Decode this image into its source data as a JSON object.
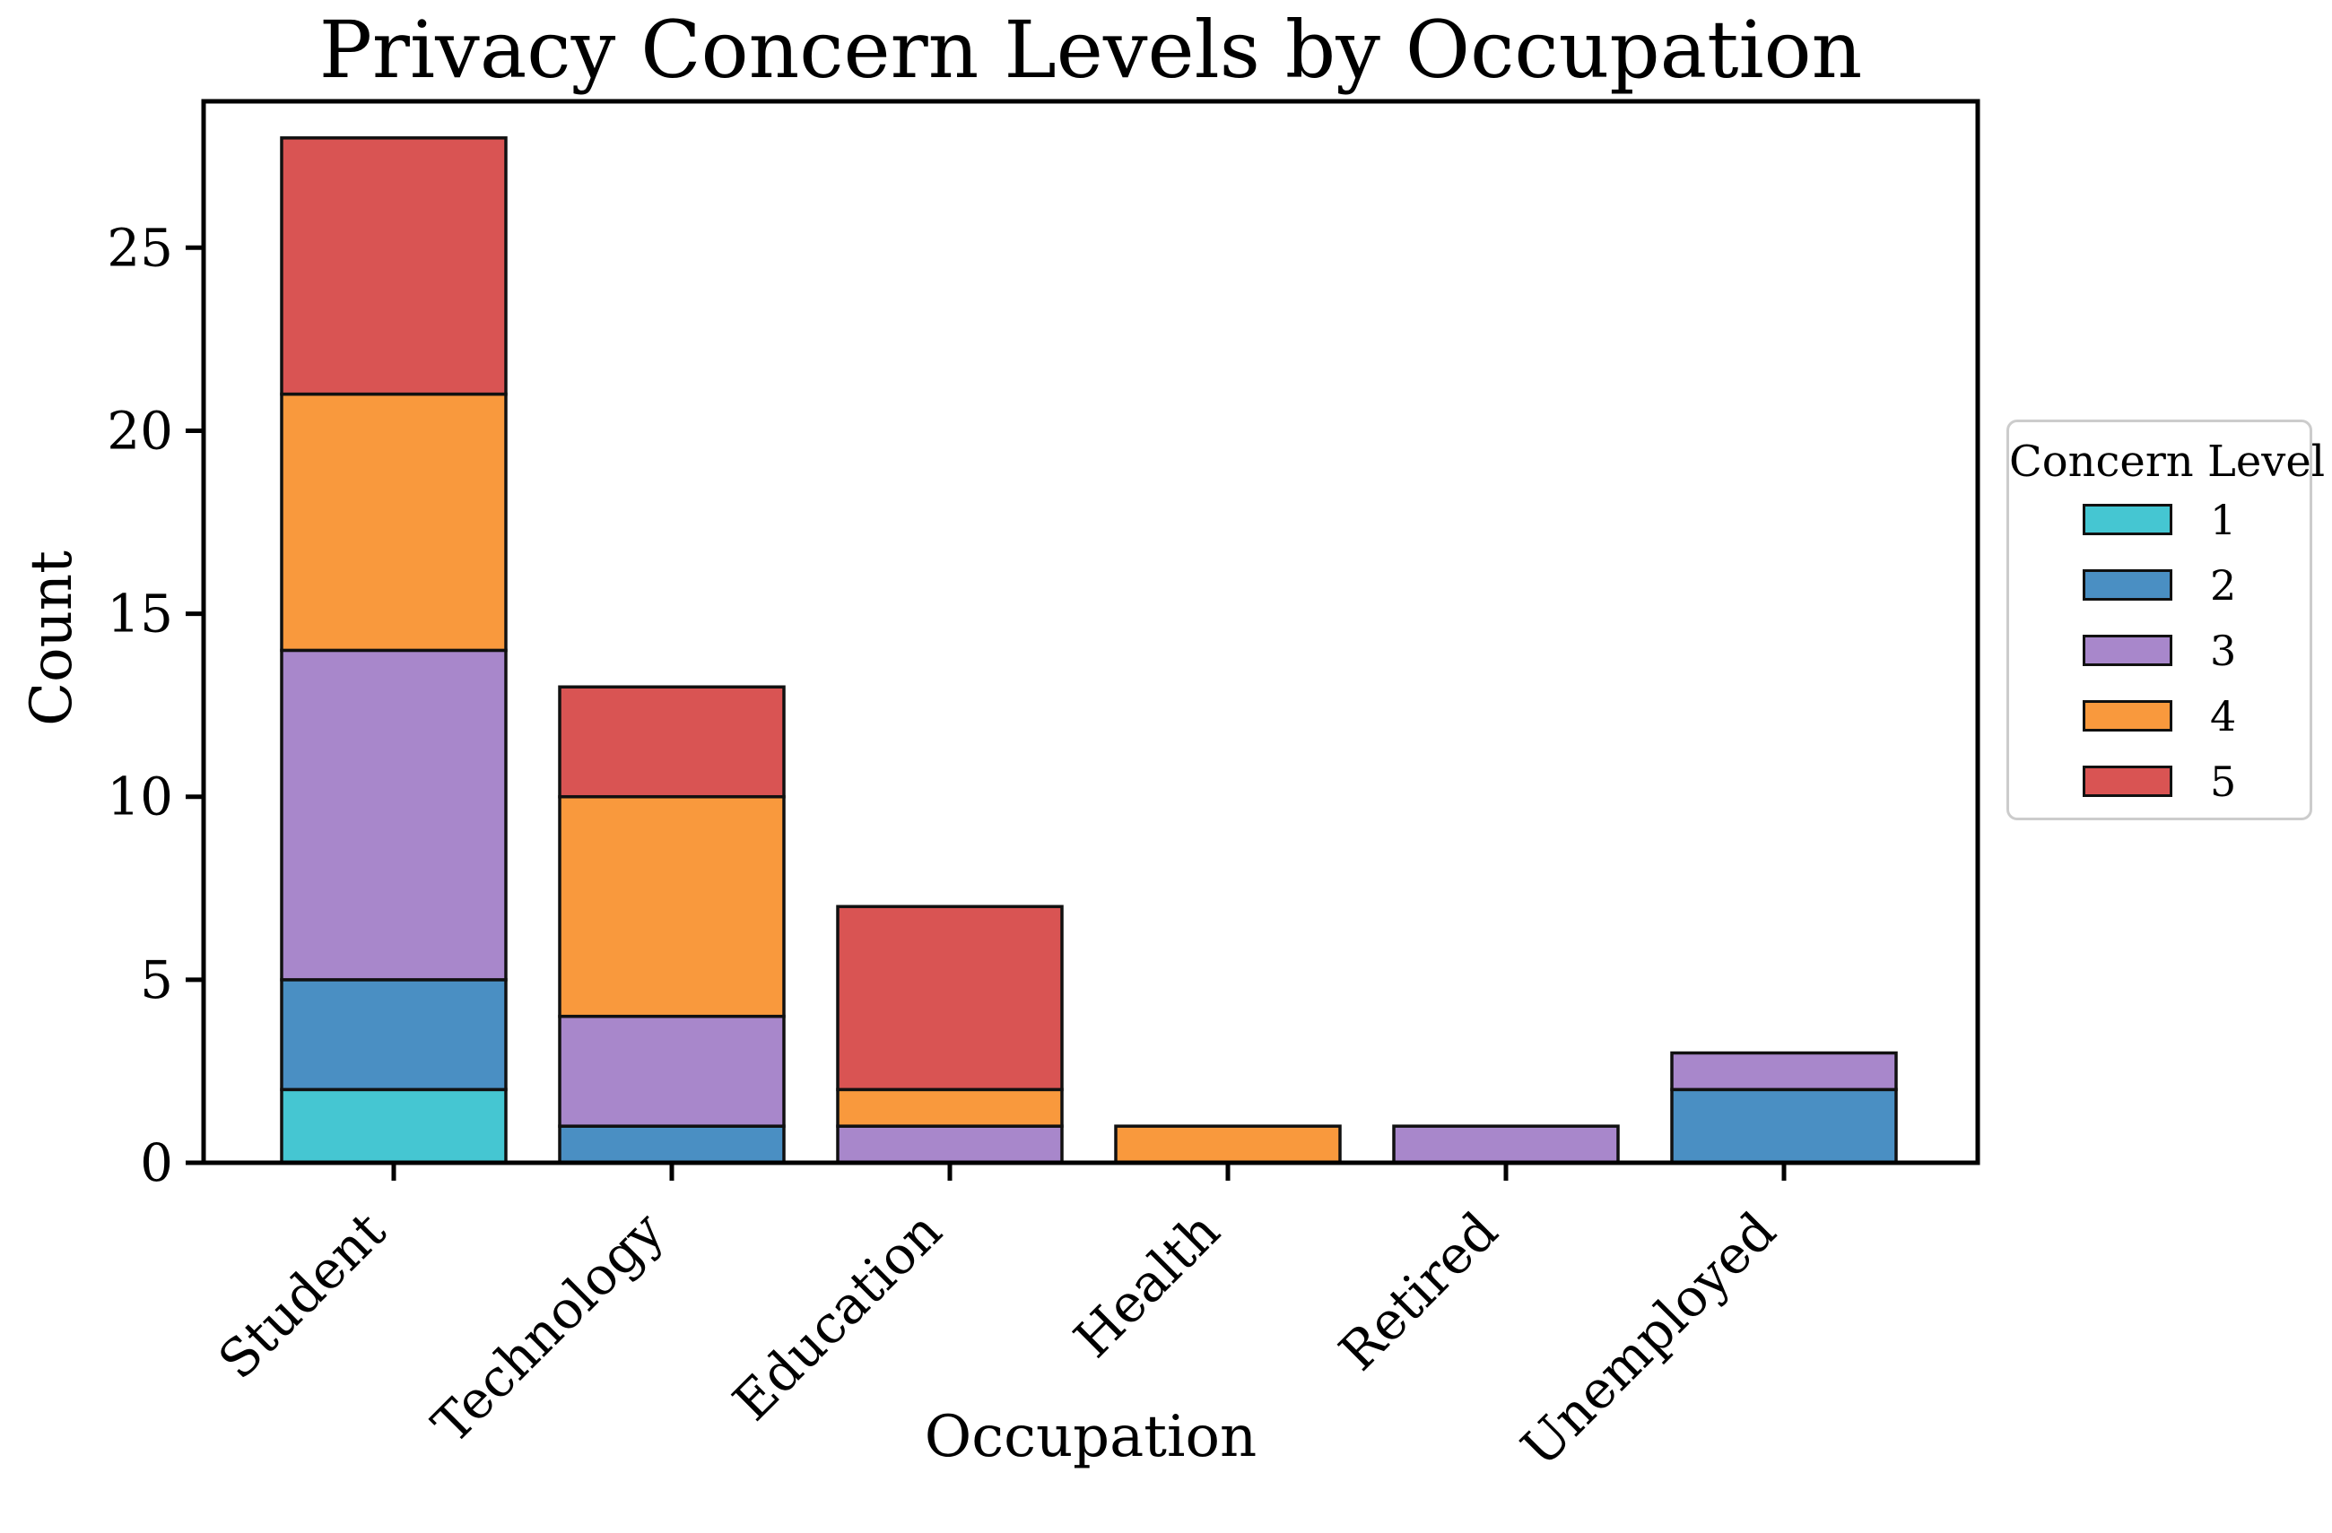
{
  "chart_data": {
    "type": "bar",
    "subtype": "stacked-vertical",
    "title": "Privacy Concern Levels by Occupation",
    "xlabel": "Occupation",
    "ylabel": "Count",
    "categories": [
      "Student",
      "Technology",
      "Education",
      "Health",
      "Retired",
      "Unemployed"
    ],
    "series": [
      {
        "name": "1",
        "color": "#45C6D2",
        "values": [
          2,
          0,
          0,
          0,
          0,
          0
        ]
      },
      {
        "name": "2",
        "color": "#4A8FC3",
        "values": [
          3,
          1,
          0,
          0,
          0,
          2
        ]
      },
      {
        "name": "3",
        "color": "#A887CB",
        "values": [
          9,
          3,
          1,
          0,
          1,
          1
        ]
      },
      {
        "name": "4",
        "color": "#F9993D",
        "values": [
          7,
          6,
          1,
          1,
          0,
          0
        ]
      },
      {
        "name": "5",
        "color": "#D95453",
        "values": [
          7,
          3,
          5,
          0,
          0,
          0
        ]
      }
    ],
    "stack_totals": [
      28,
      13,
      7,
      1,
      1,
      3
    ],
    "ylim": [
      0,
      29
    ],
    "yticks": [
      0,
      5,
      10,
      15,
      20,
      25
    ],
    "bar_edge_color": "#111111",
    "axis_color": "#000000",
    "grid": false,
    "legend": {
      "title": "Concern Level",
      "labels": [
        "1",
        "2",
        "3",
        "4",
        "5"
      ],
      "position": "center right, outside axes"
    }
  }
}
